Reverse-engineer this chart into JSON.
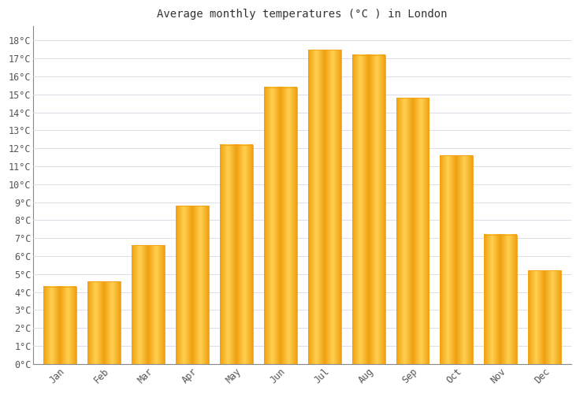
{
  "title": "Average monthly temperatures (°C ) in London",
  "months": [
    "Jan",
    "Feb",
    "Mar",
    "Apr",
    "May",
    "Jun",
    "Jul",
    "Aug",
    "Sep",
    "Oct",
    "Nov",
    "Dec"
  ],
  "values": [
    4.3,
    4.6,
    6.6,
    8.8,
    12.2,
    15.4,
    17.5,
    17.2,
    14.8,
    11.6,
    7.2,
    5.2
  ],
  "bar_color_center": "#FFD050",
  "bar_color_edge": "#F0A010",
  "background_color": "#FFFFFF",
  "grid_color": "#DDDDE8",
  "ytick_labels": [
    "0°C",
    "1°C",
    "2°C",
    "3°C",
    "4°C",
    "5°C",
    "6°C",
    "7°C",
    "8°C",
    "9°C",
    "10°C",
    "11°C",
    "12°C",
    "13°C",
    "14°C",
    "15°C",
    "16°C",
    "17°C",
    "18°C"
  ],
  "ytick_values": [
    0,
    1,
    2,
    3,
    4,
    5,
    6,
    7,
    8,
    9,
    10,
    11,
    12,
    13,
    14,
    15,
    16,
    17,
    18
  ],
  "ylim": [
    0,
    18.8
  ],
  "title_fontsize": 10,
  "tick_fontsize": 8.5,
  "spine_color": "#888888"
}
